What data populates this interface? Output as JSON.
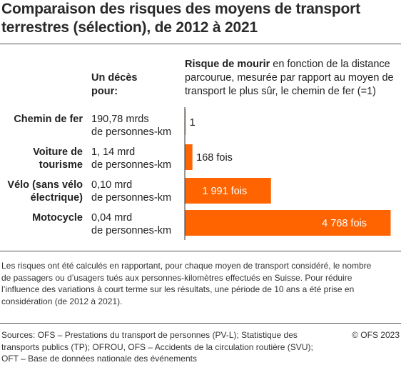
{
  "title": "Comparaison des risques des moyens de transport terrestres (sélection), de 2012 à 2021",
  "column_header": "Un décès pour:",
  "description_bold": "Risque de mourir",
  "description_rest": " en fonction de la distance parcourue, mesurée par rapport au moyen de transport le plus sûr, le chemin de fer (=1)",
  "rows": [
    {
      "label": "Chemin de fer",
      "deaths_line1": "190,78 mrds",
      "deaths_line2": "de personnes-km"
    },
    {
      "label": "Voiture de tourisme",
      "deaths_line1": "1, 14 mrd",
      "deaths_line2": "de personnes-km"
    },
    {
      "label": "Vélo (sans vélo électrique)",
      "deaths_line1": "0,10 mrd",
      "deaths_line2": "de personnes-km"
    },
    {
      "label": "Motocycle",
      "deaths_line1": "0,04 mrd",
      "deaths_line2": "de personnes-km"
    }
  ],
  "chart_data": {
    "type": "bar",
    "orientation": "horizontal",
    "categories": [
      "Chemin de fer",
      "Voiture de tourisme",
      "Vélo (sans vélo électrique)",
      "Motocycle"
    ],
    "values": [
      1,
      168,
      1991,
      4768
    ],
    "data_labels": [
      "1",
      "168 fois",
      "1 991 fois",
      "4 768 fois"
    ],
    "xlim": [
      0,
      4768
    ],
    "bar_color": "#ff6400",
    "grid": false
  },
  "note": "Les risques ont été calculés en rapportant, pour chaque moyen de transport considéré, le nombre de passagers ou d’usagers tués aux personnes-kilomètres effectués en Suisse. Pour réduire l’influence des variations à court terme sur les résultats, une période de 10 ans a été prise en considération (de 2012 à 2021).",
  "sources": "Sources: OFS – Prestations du transport de personnes (PV-L); Statistique des transports publics (TP); OFROU, OFS – Accidents de la circulation routière (SVU); OFT – Base de données nationale des événements",
  "copyright": "© OFS 2023"
}
